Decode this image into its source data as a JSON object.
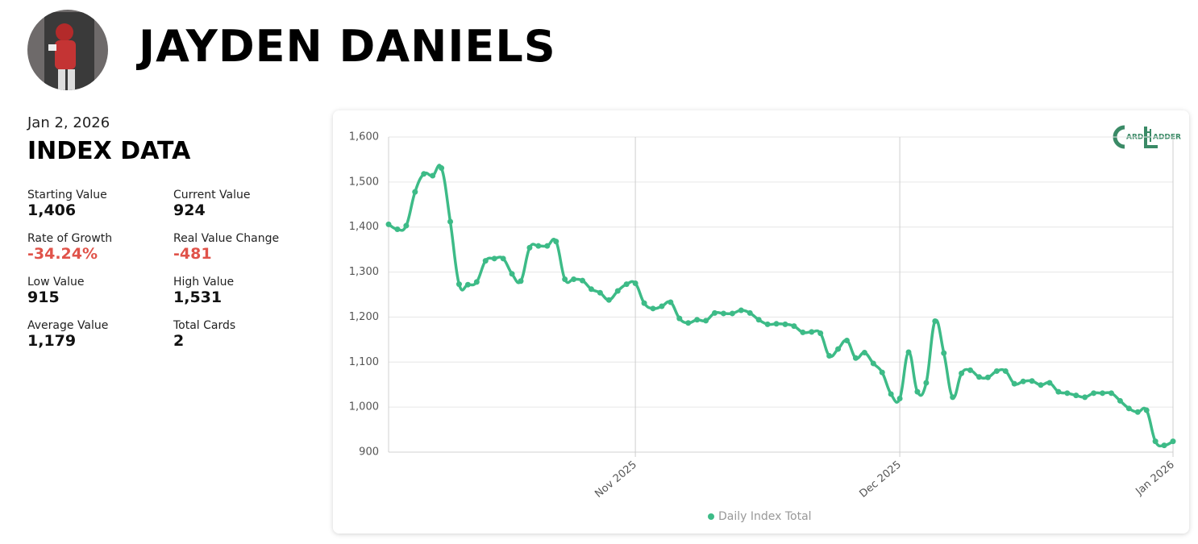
{
  "header": {
    "title": "JAYDEN DANIELS"
  },
  "summary": {
    "date": "Jan 2, 2026",
    "heading": "INDEX DATA",
    "stats": [
      {
        "label": "Starting Value",
        "value": "1,406",
        "color": "#111111"
      },
      {
        "label": "Current Value",
        "value": "924",
        "color": "#111111"
      },
      {
        "label": "Rate of Growth",
        "value": "-34.24%",
        "color": "#e0534a"
      },
      {
        "label": "Real Value Change",
        "value": "-481",
        "color": "#e0534a"
      },
      {
        "label": "Low Value",
        "value": "915",
        "color": "#111111"
      },
      {
        "label": "High Value",
        "value": "1,531",
        "color": "#111111"
      },
      {
        "label": "Average Value",
        "value": "1,179",
        "color": "#111111"
      },
      {
        "label": "Total Cards",
        "value": "2",
        "color": "#111111"
      }
    ]
  },
  "logo": {
    "parts": [
      "ARD",
      "ADDER"
    ]
  },
  "chart_data": {
    "type": "line",
    "categories": [
      null,
      null,
      null,
      null,
      null,
      null,
      null,
      null,
      null,
      null,
      null,
      null,
      null,
      null,
      null,
      null,
      null,
      null,
      null,
      null,
      null,
      null,
      null,
      null,
      null,
      null,
      null,
      null,
      "Nov 2025",
      null,
      null,
      null,
      null,
      null,
      null,
      null,
      null,
      null,
      null,
      null,
      null,
      null,
      null,
      null,
      null,
      null,
      null,
      null,
      null,
      null,
      null,
      null,
      null,
      null,
      null,
      null,
      null,
      null,
      "Dec 2025",
      null,
      null,
      null,
      null,
      null,
      null,
      null,
      null,
      null,
      null,
      null,
      null,
      null,
      null,
      null,
      null,
      null,
      null,
      null,
      null,
      null,
      null,
      null,
      null,
      null,
      null,
      null,
      null,
      null,
      null,
      "Jan 2026"
    ],
    "series": [
      {
        "name": "Daily Index Total",
        "color": "#3dbb87",
        "values": [
          1406,
          1395,
          1403,
          1478,
          1518,
          1514,
          1531,
          1412,
          1273,
          1272,
          1278,
          1325,
          1330,
          1330,
          1296,
          1280,
          1354,
          1358,
          1358,
          1368,
          1284,
          1284,
          1281,
          1262,
          1254,
          1238,
          1258,
          1273,
          1275,
          1231,
          1219,
          1224,
          1233,
          1197,
          1187,
          1194,
          1192,
          1209,
          1208,
          1208,
          1215,
          1209,
          1194,
          1184,
          1185,
          1184,
          1180,
          1166,
          1167,
          1164,
          1114,
          1129,
          1148,
          1109,
          1121,
          1097,
          1077,
          1029,
          1019,
          1122,
          1034,
          1054,
          1191,
          1120,
          1022,
          1075,
          1082,
          1067,
          1066,
          1080,
          1080,
          1052,
          1057,
          1058,
          1049,
          1054,
          1034,
          1031,
          1026,
          1022,
          1031,
          1031,
          1031,
          1014,
          997,
          989,
          993,
          924,
          915,
          924
        ]
      }
    ],
    "ylim": [
      900,
      1600
    ],
    "yticks": [
      {
        "value": 900,
        "label": "900"
      },
      {
        "value": 1000,
        "label": "1,000"
      },
      {
        "value": 1100,
        "label": "1,100"
      },
      {
        "value": 1200,
        "label": "1,200"
      },
      {
        "value": 1300,
        "label": "1,300"
      },
      {
        "value": 1400,
        "label": "1,400"
      },
      {
        "value": 1500,
        "label": "1,500"
      },
      {
        "value": 1600,
        "label": "1,600"
      }
    ],
    "grid": true,
    "legend": "bottom"
  }
}
